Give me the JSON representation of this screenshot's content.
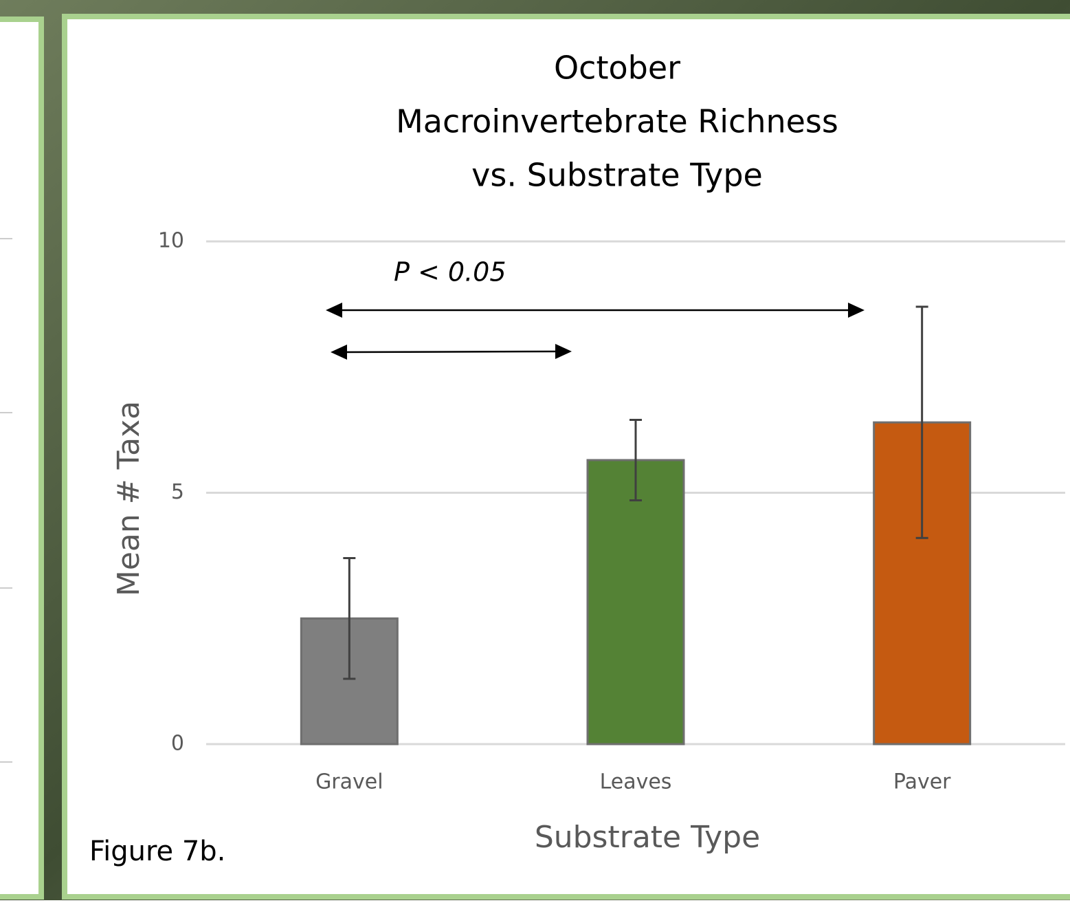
{
  "chart_data": {
    "type": "bar",
    "title": [
      "October",
      "Macroinvertebrate Richness",
      "vs. Substrate Type"
    ],
    "x_label": "Substrate Type",
    "y_label": "Mean # Taxa",
    "categories": [
      "Gravel",
      "Leaves",
      "Paver"
    ],
    "values": [
      2.5,
      5.65,
      6.4
    ],
    "errors": [
      1.2,
      0.8,
      2.3
    ],
    "colors": [
      "#7f7f7f",
      "#548235",
      "#c55a11"
    ],
    "ylim": [
      0,
      10
    ],
    "yticks": [
      0,
      5,
      10
    ],
    "grid": true,
    "annotation": "P < 0.05",
    "caption": "Figure 7b."
  }
}
